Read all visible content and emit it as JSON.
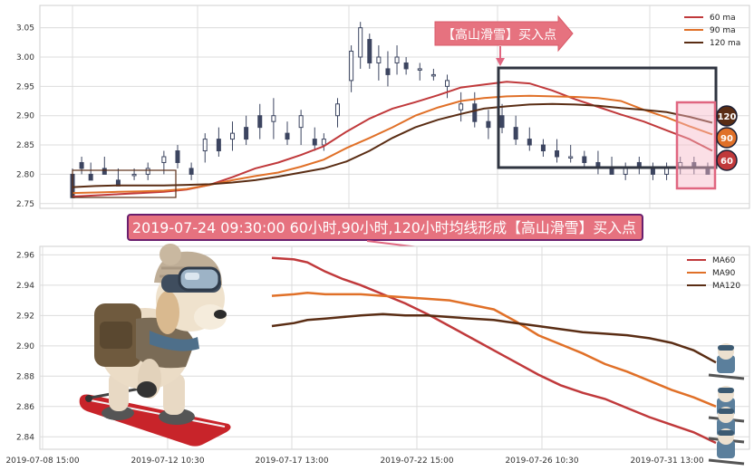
{
  "colors": {
    "ma60": "#c0393b",
    "ma90": "#e07028",
    "ma120": "#5a2d14",
    "candle": "#3c4560",
    "box": "#2f3440",
    "pinkBox": "#e06680",
    "bannerBg": "#e6727f",
    "bannerBorder": "#6a1f6e",
    "grid": "#dcdcdc"
  },
  "annotations": {
    "arrow_label": "【高山滑雪】买入点",
    "banner": "2019-07-24 09:30:00 60小时,90小时,120小时均线形成【高山滑雪】买入点",
    "badge_120": "120",
    "badge_90": "90",
    "badge_60": "60"
  },
  "chart_data": [
    {
      "type": "line",
      "panel": "top",
      "title": "",
      "ylim": [
        2.745,
        3.085
      ],
      "y_ticks": [
        "2.75",
        "2.80",
        "2.85",
        "2.90",
        "2.95",
        "3.00",
        "3.05"
      ],
      "legend": {
        "placement": "top-right",
        "entries": [
          "60 ma",
          "90 ma",
          "120 ma"
        ]
      },
      "grid": true,
      "x_index_range": [
        0,
        280
      ],
      "series": [
        {
          "name": "60 ma",
          "color": "#c0393b",
          "points": [
            [
              0,
              2.762
            ],
            [
              10,
              2.764
            ],
            [
              20,
              2.766
            ],
            [
              30,
              2.768
            ],
            [
              40,
              2.77
            ],
            [
              50,
              2.774
            ],
            [
              60,
              2.782
            ],
            [
              70,
              2.795
            ],
            [
              80,
              2.81
            ],
            [
              90,
              2.82
            ],
            [
              100,
              2.833
            ],
            [
              110,
              2.848
            ],
            [
              120,
              2.873
            ],
            [
              130,
              2.895
            ],
            [
              140,
              2.912
            ],
            [
              150,
              2.923
            ],
            [
              160,
              2.935
            ],
            [
              170,
              2.948
            ],
            [
              180,
              2.953
            ],
            [
              190,
              2.958
            ],
            [
              200,
              2.955
            ],
            [
              210,
              2.943
            ],
            [
              220,
              2.928
            ],
            [
              230,
              2.915
            ],
            [
              240,
              2.902
            ],
            [
              250,
              2.89
            ],
            [
              260,
              2.875
            ],
            [
              270,
              2.86
            ],
            [
              280,
              2.84
            ]
          ]
        },
        {
          "name": "90 ma",
          "color": "#e07028",
          "points": [
            [
              0,
              2.768
            ],
            [
              10,
              2.769
            ],
            [
              20,
              2.77
            ],
            [
              30,
              2.771
            ],
            [
              40,
              2.772
            ],
            [
              50,
              2.775
            ],
            [
              60,
              2.782
            ],
            [
              70,
              2.79
            ],
            [
              80,
              2.797
            ],
            [
              90,
              2.803
            ],
            [
              100,
              2.813
            ],
            [
              110,
              2.825
            ],
            [
              120,
              2.845
            ],
            [
              130,
              2.862
            ],
            [
              140,
              2.88
            ],
            [
              150,
              2.9
            ],
            [
              160,
              2.914
            ],
            [
              170,
              2.925
            ],
            [
              180,
              2.93
            ],
            [
              190,
              2.933
            ],
            [
              200,
              2.934
            ],
            [
              210,
              2.933
            ],
            [
              220,
              2.932
            ],
            [
              230,
              2.93
            ],
            [
              240,
              2.925
            ],
            [
              250,
              2.91
            ],
            [
              260,
              2.897
            ],
            [
              270,
              2.882
            ],
            [
              280,
              2.868
            ]
          ]
        },
        {
          "name": "120 ma",
          "color": "#5a2d14",
          "points": [
            [
              0,
              2.778
            ],
            [
              10,
              2.78
            ],
            [
              20,
              2.781
            ],
            [
              30,
              2.781
            ],
            [
              40,
              2.781
            ],
            [
              50,
              2.782
            ],
            [
              60,
              2.783
            ],
            [
              70,
              2.786
            ],
            [
              80,
              2.79
            ],
            [
              90,
              2.796
            ],
            [
              100,
              2.803
            ],
            [
              110,
              2.81
            ],
            [
              120,
              2.822
            ],
            [
              130,
              2.84
            ],
            [
              140,
              2.862
            ],
            [
              150,
              2.88
            ],
            [
              160,
              2.893
            ],
            [
              170,
              2.903
            ],
            [
              180,
              2.912
            ],
            [
              190,
              2.916
            ],
            [
              200,
              2.919
            ],
            [
              210,
              2.92
            ],
            [
              220,
              2.919
            ],
            [
              230,
              2.917
            ],
            [
              240,
              2.913
            ],
            [
              250,
              2.91
            ],
            [
              260,
              2.906
            ],
            [
              270,
              2.898
            ],
            [
              280,
              2.888
            ]
          ]
        }
      ],
      "candles_sample": [
        {
          "i": 0,
          "o": 2.8,
          "h": 2.81,
          "l": 2.76,
          "c": 2.76
        },
        {
          "i": 4,
          "o": 2.82,
          "h": 2.83,
          "l": 2.8,
          "c": 2.81
        },
        {
          "i": 8,
          "o": 2.8,
          "h": 2.82,
          "l": 2.79,
          "c": 2.79
        },
        {
          "i": 14,
          "o": 2.81,
          "h": 2.83,
          "l": 2.8,
          "c": 2.8
        },
        {
          "i": 20,
          "o": 2.79,
          "h": 2.81,
          "l": 2.78,
          "c": 2.78
        },
        {
          "i": 27,
          "o": 2.8,
          "h": 2.81,
          "l": 2.79,
          "c": 2.8
        },
        {
          "i": 33,
          "o": 2.8,
          "h": 2.82,
          "l": 2.79,
          "c": 2.81
        },
        {
          "i": 40,
          "o": 2.82,
          "h": 2.84,
          "l": 2.8,
          "c": 2.83
        },
        {
          "i": 46,
          "o": 2.84,
          "h": 2.85,
          "l": 2.81,
          "c": 2.82
        },
        {
          "i": 52,
          "o": 2.81,
          "h": 2.82,
          "l": 2.79,
          "c": 2.8
        },
        {
          "i": 58,
          "o": 2.84,
          "h": 2.87,
          "l": 2.82,
          "c": 2.86
        },
        {
          "i": 64,
          "o": 2.86,
          "h": 2.88,
          "l": 2.83,
          "c": 2.84
        },
        {
          "i": 70,
          "o": 2.86,
          "h": 2.89,
          "l": 2.84,
          "c": 2.87
        },
        {
          "i": 76,
          "o": 2.88,
          "h": 2.9,
          "l": 2.85,
          "c": 2.86
        },
        {
          "i": 82,
          "o": 2.9,
          "h": 2.92,
          "l": 2.86,
          "c": 2.88
        },
        {
          "i": 88,
          "o": 2.89,
          "h": 2.93,
          "l": 2.86,
          "c": 2.9
        },
        {
          "i": 94,
          "o": 2.87,
          "h": 2.89,
          "l": 2.85,
          "c": 2.86
        },
        {
          "i": 100,
          "o": 2.88,
          "h": 2.91,
          "l": 2.85,
          "c": 2.9
        },
        {
          "i": 106,
          "o": 2.86,
          "h": 2.88,
          "l": 2.84,
          "c": 2.85
        },
        {
          "i": 110,
          "o": 2.85,
          "h": 2.87,
          "l": 2.84,
          "c": 2.86
        },
        {
          "i": 116,
          "o": 2.9,
          "h": 2.93,
          "l": 2.88,
          "c": 2.92
        },
        {
          "i": 122,
          "o": 2.96,
          "h": 3.02,
          "l": 2.94,
          "c": 3.01
        },
        {
          "i": 126,
          "o": 3.0,
          "h": 3.06,
          "l": 2.98,
          "c": 3.05
        },
        {
          "i": 130,
          "o": 3.03,
          "h": 3.04,
          "l": 2.98,
          "c": 2.99
        },
        {
          "i": 134,
          "o": 2.99,
          "h": 3.02,
          "l": 2.96,
          "c": 3.0
        },
        {
          "i": 138,
          "o": 2.98,
          "h": 3.01,
          "l": 2.95,
          "c": 2.97
        },
        {
          "i": 142,
          "o": 2.99,
          "h": 3.02,
          "l": 2.97,
          "c": 3.0
        },
        {
          "i": 146,
          "o": 2.99,
          "h": 3.0,
          "l": 2.97,
          "c": 2.98
        },
        {
          "i": 152,
          "o": 2.98,
          "h": 2.99,
          "l": 2.96,
          "c": 2.98
        },
        {
          "i": 158,
          "o": 2.97,
          "h": 2.98,
          "l": 2.96,
          "c": 2.97
        },
        {
          "i": 164,
          "o": 2.95,
          "h": 2.97,
          "l": 2.93,
          "c": 2.96
        },
        {
          "i": 170,
          "o": 2.91,
          "h": 2.94,
          "l": 2.89,
          "c": 2.92
        },
        {
          "i": 176,
          "o": 2.92,
          "h": 2.94,
          "l": 2.88,
          "c": 2.89
        },
        {
          "i": 182,
          "o": 2.89,
          "h": 2.91,
          "l": 2.86,
          "c": 2.88
        },
        {
          "i": 188,
          "o": 2.9,
          "h": 2.92,
          "l": 2.87,
          "c": 2.88
        },
        {
          "i": 194,
          "o": 2.88,
          "h": 2.9,
          "l": 2.85,
          "c": 2.86
        },
        {
          "i": 200,
          "o": 2.86,
          "h": 2.88,
          "l": 2.84,
          "c": 2.85
        },
        {
          "i": 206,
          "o": 2.85,
          "h": 2.86,
          "l": 2.83,
          "c": 2.84
        },
        {
          "i": 212,
          "o": 2.84,
          "h": 2.86,
          "l": 2.82,
          "c": 2.83
        },
        {
          "i": 218,
          "o": 2.83,
          "h": 2.85,
          "l": 2.82,
          "c": 2.83
        },
        {
          "i": 224,
          "o": 2.83,
          "h": 2.84,
          "l": 2.81,
          "c": 2.82
        },
        {
          "i": 230,
          "o": 2.82,
          "h": 2.84,
          "l": 2.8,
          "c": 2.81
        },
        {
          "i": 236,
          "o": 2.81,
          "h": 2.83,
          "l": 2.8,
          "c": 2.8
        },
        {
          "i": 242,
          "o": 2.8,
          "h": 2.82,
          "l": 2.79,
          "c": 2.81
        },
        {
          "i": 248,
          "o": 2.82,
          "h": 2.83,
          "l": 2.8,
          "c": 2.81
        },
        {
          "i": 254,
          "o": 2.81,
          "h": 2.82,
          "l": 2.79,
          "c": 2.8
        },
        {
          "i": 260,
          "o": 2.8,
          "h": 2.82,
          "l": 2.79,
          "c": 2.81
        },
        {
          "i": 266,
          "o": 2.81,
          "h": 2.83,
          "l": 2.8,
          "c": 2.82
        },
        {
          "i": 272,
          "o": 2.82,
          "h": 2.83,
          "l": 2.8,
          "c": 2.81
        },
        {
          "i": 278,
          "o": 2.81,
          "h": 2.82,
          "l": 2.8,
          "c": 2.8
        }
      ]
    },
    {
      "type": "line",
      "panel": "bottom",
      "title": "",
      "ylim": [
        2.833,
        2.962
      ],
      "y_ticks": [
        "2.84",
        "2.86",
        "2.88",
        "2.90",
        "2.92",
        "2.94",
        "2.96"
      ],
      "x_tick_labels": [
        "2019-07-08 15:00",
        "2019-07-12 10:30",
        "2019-07-17 13:00",
        "2019-07-22 15:00",
        "2019-07-26 10:30",
        "2019-07-31 13:00"
      ],
      "legend": {
        "placement": "top-right",
        "entries": [
          "MA60",
          "MA90",
          "MA120"
        ]
      },
      "grid": true,
      "x_index_range": [
        0,
        100
      ],
      "series": [
        {
          "name": "MA60",
          "color": "#c0393b",
          "points": [
            [
              0,
              2.958
            ],
            [
              5,
              2.957
            ],
            [
              8,
              2.955
            ],
            [
              12,
              2.949
            ],
            [
              16,
              2.944
            ],
            [
              20,
              2.94
            ],
            [
              25,
              2.934
            ],
            [
              30,
              2.928
            ],
            [
              35,
              2.921
            ],
            [
              40,
              2.913
            ],
            [
              45,
              2.905
            ],
            [
              50,
              2.897
            ],
            [
              55,
              2.889
            ],
            [
              60,
              2.881
            ],
            [
              65,
              2.874
            ],
            [
              70,
              2.869
            ],
            [
              75,
              2.865
            ],
            [
              80,
              2.859
            ],
            [
              85,
              2.853
            ],
            [
              90,
              2.848
            ],
            [
              95,
              2.843
            ],
            [
              100,
              2.836
            ]
          ]
        },
        {
          "name": "MA90",
          "color": "#e07028",
          "points": [
            [
              0,
              2.933
            ],
            [
              5,
              2.934
            ],
            [
              8,
              2.935
            ],
            [
              12,
              2.934
            ],
            [
              16,
              2.934
            ],
            [
              20,
              2.934
            ],
            [
              25,
              2.933
            ],
            [
              30,
              2.932
            ],
            [
              35,
              2.931
            ],
            [
              40,
              2.93
            ],
            [
              45,
              2.927
            ],
            [
              50,
              2.924
            ],
            [
              55,
              2.916
            ],
            [
              60,
              2.907
            ],
            [
              65,
              2.901
            ],
            [
              70,
              2.895
            ],
            [
              75,
              2.888
            ],
            [
              80,
              2.883
            ],
            [
              85,
              2.877
            ],
            [
              90,
              2.871
            ],
            [
              95,
              2.866
            ],
            [
              100,
              2.86
            ]
          ]
        },
        {
          "name": "MA120",
          "color": "#5a2d14",
          "points": [
            [
              0,
              2.913
            ],
            [
              5,
              2.915
            ],
            [
              8,
              2.917
            ],
            [
              12,
              2.918
            ],
            [
              16,
              2.919
            ],
            [
              20,
              2.92
            ],
            [
              25,
              2.921
            ],
            [
              30,
              2.92
            ],
            [
              35,
              2.92
            ],
            [
              40,
              2.919
            ],
            [
              45,
              2.918
            ],
            [
              50,
              2.917
            ],
            [
              55,
              2.915
            ],
            [
              60,
              2.913
            ],
            [
              65,
              2.911
            ],
            [
              70,
              2.909
            ],
            [
              75,
              2.908
            ],
            [
              80,
              2.907
            ],
            [
              85,
              2.905
            ],
            [
              90,
              2.902
            ],
            [
              95,
              2.897
            ],
            [
              100,
              2.889
            ]
          ]
        }
      ]
    }
  ]
}
